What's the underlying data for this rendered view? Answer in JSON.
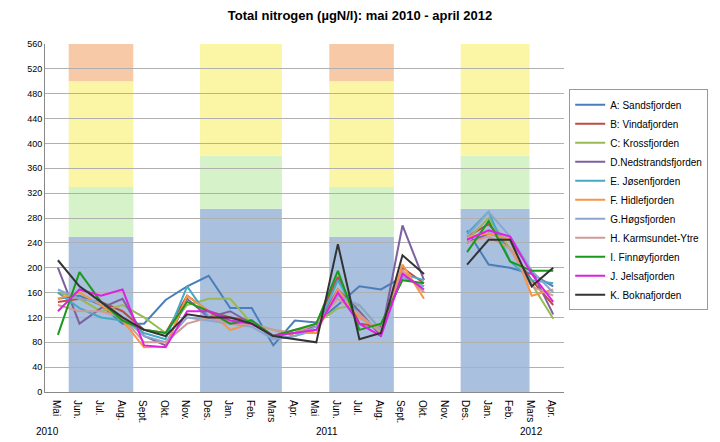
{
  "chart_data": {
    "type": "line",
    "title": "Total nitrogen (µgN/l): mai 2010 - april 2012",
    "categories": [
      "Mai",
      "Jun.",
      "Jul.",
      "Aug.",
      "Sept.",
      "Okt.",
      "Nov.",
      "Des.",
      "Jan.",
      "Feb.",
      "Mars",
      "Apr.",
      "Mai",
      "Jun.",
      "Jul.",
      "Aug.",
      "Sept.",
      "Okt.",
      "Nov.",
      "Des.",
      "Jan.",
      "Feb.",
      "Mars",
      "Apr."
    ],
    "series": [
      {
        "name": "A: Sandsfjorden",
        "color": "#4a7ebb",
        "values": [
          150,
          155,
          140,
          110,
          110,
          148,
          170,
          187,
          135,
          135,
          75,
          115,
          112,
          140,
          170,
          165,
          185,
          170,
          null,
          260,
          205,
          200,
          190,
          170
        ]
      },
      {
        "name": "B: Vindafjorden",
        "color": "#be4b48",
        "values": [
          145,
          150,
          145,
          130,
          100,
          95,
          155,
          130,
          120,
          115,
          90,
          95,
          110,
          185,
          110,
          105,
          200,
          175,
          null,
          250,
          270,
          230,
          180,
          140
        ]
      },
      {
        "name": "C: Krossfjorden",
        "color": "#98b954",
        "values": [
          160,
          150,
          130,
          140,
          120,
          95,
          140,
          150,
          150,
          110,
          100,
          90,
          110,
          135,
          140,
          100,
          195,
          160,
          null,
          245,
          280,
          230,
          175,
          118
        ]
      },
      {
        "name": "D.Nedstrandsfjorden",
        "color": "#7d60a0",
        "values": [
          200,
          110,
          135,
          150,
          90,
          75,
          150,
          120,
          130,
          110,
          90,
          100,
          105,
          165,
          130,
          90,
          268,
          180,
          null,
          240,
          255,
          245,
          195,
          125
        ]
      },
      {
        "name": "E. Jøsenfjorden",
        "color": "#46aac5",
        "values": [
          160,
          135,
          120,
          115,
          95,
          85,
          170,
          120,
          110,
          115,
          85,
          90,
          100,
          180,
          120,
          100,
          190,
          180,
          null,
          255,
          290,
          210,
          180,
          175
        ]
      },
      {
        "name": "F. Hidlefjorden",
        "color": "#f79646",
        "values": [
          150,
          160,
          140,
          115,
          72,
          73,
          155,
          130,
          100,
          110,
          90,
          95,
          95,
          165,
          120,
          100,
          205,
          150,
          null,
          250,
          255,
          245,
          155,
          165
        ]
      },
      {
        "name": "G.Høgsfjorden",
        "color": "#8ca6d0",
        "values": [
          165,
          150,
          145,
          120,
          90,
          80,
          120,
          115,
          110,
          105,
          85,
          90,
          105,
          155,
          140,
          100,
          185,
          170,
          null,
          250,
          290,
          250,
          195,
          160
        ]
      },
      {
        "name": "H. Karmsundet-Ytre",
        "color": "#d09a97",
        "values": [
          140,
          130,
          130,
          120,
          80,
          80,
          110,
          120,
          110,
          110,
          100,
          95,
          110,
          150,
          125,
          95,
          195,
          160,
          null,
          240,
          250,
          230,
          170,
          155
        ]
      },
      {
        "name": "I. Finnøyfjorden",
        "color": "#1a9a1a",
        "values": [
          92,
          193,
          145,
          115,
          100,
          95,
          145,
          130,
          110,
          115,
          90,
          100,
          110,
          195,
          100,
          110,
          180,
          175,
          null,
          225,
          275,
          210,
          195,
          195
        ]
      },
      {
        "name": "J. Jelsafjorden",
        "color": "#e020e0",
        "values": [
          130,
          165,
          155,
          165,
          75,
          72,
          130,
          130,
          115,
          110,
          90,
          95,
          100,
          160,
          110,
          90,
          190,
          165,
          null,
          245,
          260,
          250,
          190,
          145
        ]
      },
      {
        "name": "K. Boknafjorden",
        "color": "#333333",
        "values": [
          212,
          170,
          145,
          120,
          100,
          90,
          125,
          120,
          120,
          110,
          90,
          85,
          80,
          238,
          85,
          95,
          220,
          190,
          null,
          205,
          245,
          245,
          170,
          200
        ]
      }
    ],
    "ylim": [
      0,
      560
    ],
    "yticks": [
      0,
      40,
      80,
      120,
      160,
      200,
      240,
      280,
      320,
      360,
      400,
      440,
      480,
      520,
      560
    ],
    "grid": true,
    "legend": "right",
    "annotations": [
      {
        "text": "2010",
        "x": -0.5
      },
      {
        "text": "2011",
        "x": 12.5
      },
      {
        "text": "2012",
        "x": 22
      }
    ],
    "bands": [
      {
        "x0": 0.5,
        "x1": 3.5,
        "y0": 0,
        "y1": 250,
        "color": "#a9c0de"
      },
      {
        "x0": 0.5,
        "x1": 3.5,
        "y0": 250,
        "y1": 330,
        "color": "#d6f2c8"
      },
      {
        "x0": 0.5,
        "x1": 3.5,
        "y0": 330,
        "y1": 500,
        "color": "#fbf6a6"
      },
      {
        "x0": 0.5,
        "x1": 3.5,
        "y0": 500,
        "y1": 560,
        "color": "#f8c9a6"
      },
      {
        "x0": 6.6,
        "x1": 10.4,
        "y0": 0,
        "y1": 295,
        "color": "#a9c0de"
      },
      {
        "x0": 6.6,
        "x1": 10.4,
        "y0": 295,
        "y1": 380,
        "color": "#d6f2c8"
      },
      {
        "x0": 6.6,
        "x1": 10.4,
        "y0": 380,
        "y1": 560,
        "color": "#fbf6a6"
      },
      {
        "x0": 12.6,
        "x1": 15.6,
        "y0": 0,
        "y1": 250,
        "color": "#a9c0de"
      },
      {
        "x0": 12.6,
        "x1": 15.6,
        "y0": 250,
        "y1": 330,
        "color": "#d6f2c8"
      },
      {
        "x0": 12.6,
        "x1": 15.6,
        "y0": 330,
        "y1": 500,
        "color": "#fbf6a6"
      },
      {
        "x0": 12.6,
        "x1": 15.6,
        "y0": 500,
        "y1": 560,
        "color": "#f8c9a6"
      },
      {
        "x0": 18.7,
        "x1": 21.9,
        "y0": 0,
        "y1": 295,
        "color": "#a9c0de"
      },
      {
        "x0": 18.7,
        "x1": 21.9,
        "y0": 295,
        "y1": 380,
        "color": "#d6f2c8"
      },
      {
        "x0": 18.7,
        "x1": 21.9,
        "y0": 380,
        "y1": 560,
        "color": "#fbf6a6"
      }
    ]
  }
}
